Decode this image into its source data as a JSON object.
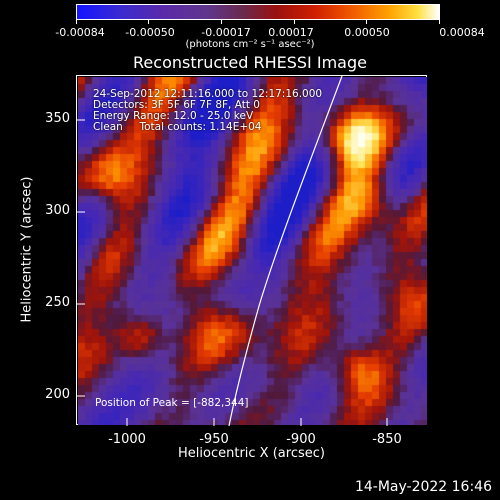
{
  "colorbar": {
    "ticks": [
      "-0.00084",
      "-0.00050",
      "-0.00017",
      "0.00017",
      "0.00050",
      "0.00084"
    ],
    "units": "(photons cm⁻² s⁻¹ asec⁻²)"
  },
  "title": "Reconstructed RHESSI Image",
  "info": {
    "time": "24-Sep-2012 12:11:16.000 to 12:17:16.000",
    "detectors": "Detectors: 3F 5F 6F 7F 8F, Att 0",
    "energy": "Energy Range: 12.0 - 25.0 keV",
    "clean": "Clean     Total counts: 1.14E+04"
  },
  "peak": "Position of Peak = [-882,344]",
  "axes": {
    "xlabel": "Heliocentric X (arcsec)",
    "ylabel": "Heliocentric Y (arcsec)",
    "xticks": [
      "-1000",
      "-950",
      "-900",
      "-850"
    ],
    "yticks": [
      "350",
      "300",
      "250",
      "200"
    ]
  },
  "datestamp": "14-May-2022 16:46"
}
